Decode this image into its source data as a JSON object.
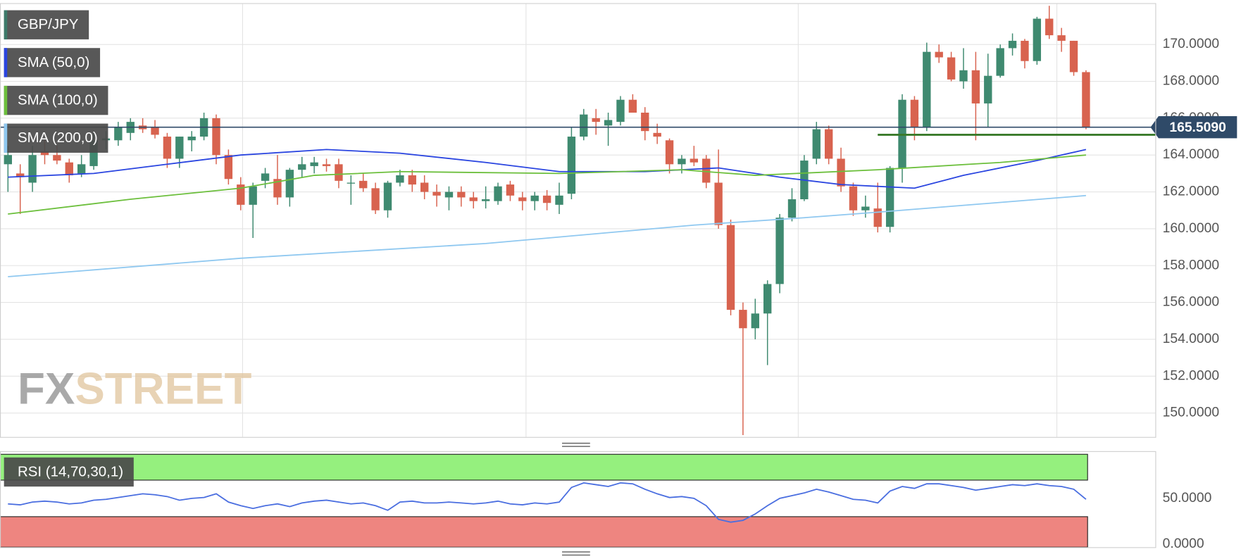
{
  "chart_data": [
    {
      "type": "candlestick",
      "xlim": [
        -0.65,
        93.66
      ],
      "ylim": [
        148.7,
        172.2
      ],
      "yticks": [
        {
          "value": 150,
          "label": "150.0000"
        },
        {
          "value": 152,
          "label": "152.0000"
        },
        {
          "value": 154,
          "label": "154.0000"
        },
        {
          "value": 156,
          "label": "156.0000"
        },
        {
          "value": 158,
          "label": "158.0000"
        },
        {
          "value": 160,
          "label": "160.0000"
        },
        {
          "value": 162,
          "label": "162.0000"
        },
        {
          "value": 164,
          "label": "164.0000"
        },
        {
          "value": 166,
          "label": "166.0000"
        },
        {
          "value": 168,
          "label": "168.0000"
        },
        {
          "value": 170,
          "label": "170.0000"
        }
      ],
      "grid": true,
      "series": [
        {
          "name": "GBP/JPY",
          "color": "#3d7a6a",
          "up_color": "#3f8a70",
          "down_color": "#d8634f",
          "open": [
            163.5,
            163,
            162.5,
            164.2,
            164,
            163.6,
            163,
            163.4,
            164.8,
            164.8,
            165.2,
            165.6,
            165.5,
            165,
            163.8,
            164.8,
            165,
            166,
            164,
            162.4,
            161.3,
            162.6,
            162.7,
            161.7,
            163.2,
            163.4,
            163.5,
            163.5,
            162.5,
            162.6,
            162.2,
            161,
            162.5,
            162.9,
            162.5,
            162,
            161.7,
            162,
            161.7,
            161.5,
            161.5,
            162.4,
            161.7,
            161.5,
            161.8,
            161.3,
            161.9,
            165,
            166,
            165.6,
            165.8,
            167,
            166.3,
            165.2,
            164.8,
            163.5,
            163.8,
            163.8,
            162.5,
            160.2,
            155.6,
            154.6,
            155.4,
            157,
            160.6,
            161.6,
            163.8,
            165.4,
            163.8,
            162.3,
            161,
            161.1,
            160.1,
            163.3,
            167,
            165.5,
            169.6,
            169.3,
            168,
            168.6,
            166.8,
            168.3,
            169.8,
            170.2,
            169.1,
            171.4,
            170.5,
            170.2,
            168.5
          ],
          "high": [
            164.5,
            163.5,
            164.5,
            164.8,
            164.5,
            163.8,
            164,
            165.2,
            165.3,
            165.8,
            166,
            166,
            165.9,
            165.2,
            165,
            165.3,
            166.3,
            166.2,
            164.3,
            162.8,
            162.5,
            163.3,
            164,
            163.3,
            163.9,
            163.9,
            163.8,
            163.8,
            162.9,
            163,
            162.5,
            162.6,
            163.2,
            163.2,
            162.9,
            162.4,
            162.3,
            162.3,
            162,
            162.3,
            162.5,
            162.6,
            162,
            162,
            162.1,
            162.5,
            165.5,
            166.5,
            166.5,
            166.3,
            167.2,
            167.3,
            166.6,
            165.7,
            164.9,
            164,
            164.5,
            164,
            164.3,
            160.5,
            156,
            156.2,
            157.2,
            160.8,
            162.2,
            164,
            165.8,
            165.6,
            164.4,
            162.5,
            161.8,
            162.5,
            163.4,
            167.3,
            167.2,
            170.1,
            170,
            169.6,
            169.8,
            169.6,
            169.5,
            170,
            170.6,
            170.3,
            171.5,
            172.1,
            170.9,
            170.2,
            168.6
          ],
          "low": [
            162,
            160.8,
            162,
            163.5,
            163.5,
            162.5,
            162.8,
            163.2,
            164.3,
            164.5,
            164.8,
            165.2,
            164.9,
            163.3,
            163.3,
            164.2,
            164.8,
            163.5,
            162.4,
            161,
            159.5,
            162.2,
            161.3,
            161.2,
            162.8,
            163,
            163.1,
            162.2,
            161.3,
            162,
            160.8,
            160.6,
            162.3,
            162,
            161.6,
            161.2,
            161,
            161.2,
            161.1,
            161.1,
            161.3,
            161.5,
            161,
            161,
            161,
            160.8,
            161.6,
            164.8,
            165.1,
            164.5,
            165.6,
            166.3,
            164.8,
            164.6,
            163,
            163,
            163.4,
            162.2,
            160,
            155.3,
            148.8,
            154,
            152.6,
            156.5,
            160.4,
            161.5,
            163.5,
            163.5,
            162,
            160.7,
            160.6,
            159.8,
            159.8,
            162.5,
            164.8,
            165.3,
            169,
            168,
            167.6,
            164.8,
            165.5,
            168.2,
            169.4,
            168.7,
            168.9,
            170.3,
            169.6,
            168.3,
            165.4
          ],
          "close": [
            164,
            162.8,
            164,
            164,
            163.7,
            162.9,
            163.5,
            164.8,
            164.9,
            165.5,
            165.8,
            165.4,
            165.1,
            163.8,
            165,
            165,
            166,
            164,
            162.7,
            161.3,
            162.3,
            163,
            161.7,
            163.2,
            163.5,
            163.6,
            163.4,
            162.6,
            162.5,
            162.2,
            161,
            162.5,
            162.9,
            162.4,
            162,
            161.8,
            162,
            161.7,
            161.5,
            161.6,
            162.3,
            161.8,
            161.5,
            161.8,
            161.4,
            161.8,
            165,
            166.2,
            165.8,
            165.9,
            167,
            166.3,
            165.3,
            165,
            163.5,
            163.8,
            163.6,
            162.5,
            160.2,
            155.6,
            154.6,
            155.4,
            157,
            160.6,
            161.6,
            163.7,
            165.4,
            163.8,
            162.3,
            161,
            161.2,
            160.1,
            163.3,
            167,
            165.5,
            169.6,
            169.3,
            168.1,
            168.6,
            166.8,
            168.3,
            169.8,
            170.2,
            169.1,
            171.4,
            170.5,
            170.2,
            168.5,
            165.5
          ]
        },
        {
          "name": "SMA (50,0)",
          "color": "#2a45e0",
          "x": [
            0,
            7,
            13,
            19,
            26,
            32,
            39,
            45,
            52,
            58,
            63,
            68,
            74,
            78,
            84,
            88
          ],
          "values": [
            162.8,
            163.0,
            163.5,
            164.0,
            164.3,
            164.1,
            163.6,
            163.1,
            163.1,
            163.3,
            162.8,
            162.4,
            162.2,
            162.9,
            163.7,
            164.3
          ]
        },
        {
          "name": "SMA (100,0)",
          "color": "#6cbf3c",
          "x": [
            0,
            10,
            19,
            25,
            32,
            45,
            55,
            61,
            71,
            81,
            88
          ],
          "values": [
            160.8,
            161.6,
            162.2,
            162.9,
            163.1,
            163.0,
            163.2,
            162.9,
            163.2,
            163.6,
            164.0
          ]
        },
        {
          "name": "SMA (200,0)",
          "color": "#8fc8f0",
          "x": [
            0,
            19,
            39,
            56,
            65,
            71,
            88
          ],
          "values": [
            157.4,
            158.4,
            159.2,
            160.2,
            160.6,
            160.9,
            161.8
          ]
        }
      ],
      "last_price": {
        "value": 165.509,
        "label": "165.5090",
        "color": "#2f4a68"
      },
      "support_line": {
        "value": 165.1,
        "start_index": 71,
        "color": "#3a7a2a"
      },
      "watermark": [
        "FX",
        "STREET"
      ]
    },
    {
      "type": "line",
      "xlim": [
        -0.65,
        93.66
      ],
      "ylim": [
        -3.4,
        100
      ],
      "yticks": [
        {
          "value": 0,
          "label": "0.0000"
        },
        {
          "value": 50,
          "label": "50.0000"
        }
      ],
      "overbought": 70,
      "oversold": 30,
      "overbought_color": "#95f07e",
      "oversold_color": "#ee8580",
      "series": [
        {
          "name": "RSI (14,70,30,1)",
          "color": "#4a6ee0",
          "values": [
            44,
            43,
            46,
            47,
            46,
            44,
            45,
            48,
            49,
            51,
            53,
            55,
            54,
            52,
            48,
            50,
            51,
            55,
            46,
            42,
            39,
            42,
            44,
            41,
            45,
            47,
            48,
            46,
            44,
            45,
            42,
            37,
            46,
            47,
            45,
            45,
            46,
            45,
            44,
            45,
            47,
            44,
            43,
            45,
            44,
            46,
            62,
            67,
            65,
            63,
            67,
            66,
            60,
            55,
            51,
            52,
            50,
            42,
            27,
            24,
            26,
            33,
            42,
            50,
            53,
            56,
            60,
            57,
            53,
            49,
            48,
            45,
            58,
            63,
            61,
            66,
            66,
            64,
            62,
            59,
            61,
            63,
            65,
            64,
            66,
            64,
            63,
            60,
            49
          ]
        }
      ]
    }
  ]
}
